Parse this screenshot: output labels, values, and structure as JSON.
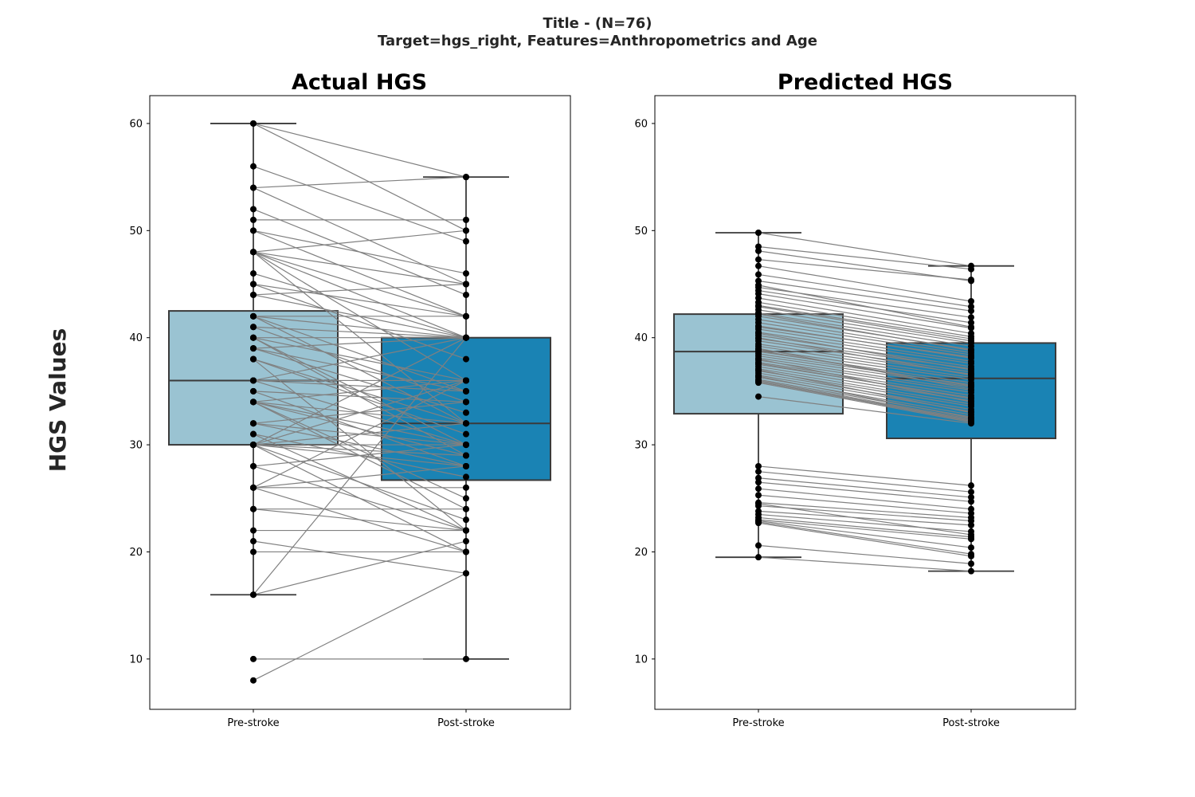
{
  "figure": {
    "suptitle_line1": "Title -  (N=76)",
    "suptitle_line2": "Target=hgs_right, Features=Anthropometrics and Age",
    "ylabel": "HGS Values"
  },
  "colors": {
    "pre_box": "#9ac3d2",
    "post_box": "#1a83b4",
    "paired_line": "#808080",
    "points": "#000000",
    "box_edge": "#3a3a3a"
  },
  "chart_data": [
    {
      "type": "box",
      "title": "Actual HGS",
      "categories": [
        "Pre-stroke",
        "Post-stroke"
      ],
      "ylim": [
        5.3,
        62.6
      ],
      "yticks": [
        10,
        20,
        30,
        40,
        50,
        60
      ],
      "grid": false,
      "boxes": [
        {
          "name": "Pre-stroke",
          "q1": 30,
          "median": 36,
          "q3": 42.5,
          "whisker_low": 16,
          "whisker_high": 60
        },
        {
          "name": "Post-stroke",
          "q1": 26.7,
          "median": 32,
          "q3": 40,
          "whisker_low": 10,
          "whisker_high": 55
        }
      ],
      "pairs": [
        [
          60,
          55
        ],
        [
          60,
          50
        ],
        [
          56,
          49
        ],
        [
          54,
          55
        ],
        [
          54,
          45
        ],
        [
          52,
          44
        ],
        [
          51,
          51
        ],
        [
          50,
          46
        ],
        [
          50,
          42
        ],
        [
          48,
          50
        ],
        [
          48,
          45
        ],
        [
          48,
          42
        ],
        [
          48,
          40
        ],
        [
          48,
          36
        ],
        [
          48,
          32
        ],
        [
          46,
          40
        ],
        [
          45,
          42
        ],
        [
          45,
          38
        ],
        [
          44,
          45
        ],
        [
          44,
          40
        ],
        [
          42,
          42
        ],
        [
          42,
          40
        ],
        [
          42,
          35
        ],
        [
          42,
          32
        ],
        [
          41,
          40
        ],
        [
          41,
          34
        ],
        [
          40,
          40
        ],
        [
          40,
          36
        ],
        [
          40,
          30
        ],
        [
          40,
          29
        ],
        [
          39,
          40
        ],
        [
          39,
          33
        ],
        [
          39,
          35
        ],
        [
          38,
          32
        ],
        [
          38,
          31
        ],
        [
          38,
          22
        ],
        [
          36,
          40
        ],
        [
          36,
          36
        ],
        [
          36,
          35
        ],
        [
          36,
          30
        ],
        [
          35,
          34
        ],
        [
          35,
          28
        ],
        [
          34,
          36
        ],
        [
          34,
          32
        ],
        [
          34,
          30
        ],
        [
          34,
          29
        ],
        [
          34,
          25
        ],
        [
          34,
          24
        ],
        [
          32,
          34
        ],
        [
          32,
          30
        ],
        [
          32,
          28
        ],
        [
          31,
          27
        ],
        [
          31,
          22
        ],
        [
          30,
          40
        ],
        [
          30,
          36
        ],
        [
          30,
          32
        ],
        [
          30,
          30
        ],
        [
          30,
          29
        ],
        [
          30,
          28
        ],
        [
          30,
          23
        ],
        [
          30,
          20
        ],
        [
          28,
          22
        ],
        [
          28,
          30
        ],
        [
          26,
          36
        ],
        [
          26,
          28
        ],
        [
          26,
          26
        ],
        [
          26,
          20
        ],
        [
          24,
          24
        ],
        [
          24,
          22
        ],
        [
          22,
          22
        ],
        [
          21,
          18
        ],
        [
          20,
          20
        ],
        [
          16,
          40
        ],
        [
          16,
          21
        ],
        [
          10,
          10
        ],
        [
          8,
          18
        ]
      ]
    },
    {
      "type": "box",
      "title": "Predicted HGS",
      "categories": [
        "Pre-stroke",
        "Post-stroke"
      ],
      "ylim": [
        5.3,
        62.6
      ],
      "yticks": [
        10,
        20,
        30,
        40,
        50,
        60
      ],
      "grid": false,
      "boxes": [
        {
          "name": "Pre-stroke",
          "q1": 32.9,
          "median": 38.7,
          "q3": 42.2,
          "whisker_low": 19.5,
          "whisker_high": 49.8
        },
        {
          "name": "Post-stroke",
          "q1": 30.6,
          "median": 36.2,
          "q3": 39.5,
          "whisker_low": 18.2,
          "whisker_high": 46.7
        }
      ],
      "pairs": [
        [
          49.8,
          46.7
        ],
        [
          48.5,
          46.4
        ],
        [
          48.1,
          45.3
        ],
        [
          47.3,
          45.4
        ],
        [
          46.7,
          43.4
        ],
        [
          45.9,
          42.9
        ],
        [
          45.3,
          42.5
        ],
        [
          44.7,
          41.9
        ],
        [
          44.4,
          41.4
        ],
        [
          44.1,
          40.9
        ],
        [
          43.7,
          40.4
        ],
        [
          43.3,
          40.1
        ],
        [
          42.9,
          39.7
        ],
        [
          42.6,
          39.5
        ],
        [
          42.3,
          39.2
        ],
        [
          42.0,
          38.9
        ],
        [
          41.7,
          38.6
        ],
        [
          41.4,
          38.4
        ],
        [
          41.1,
          38.1
        ],
        [
          40.8,
          37.8
        ],
        [
          40.5,
          37.6
        ],
        [
          40.2,
          37.3
        ],
        [
          39.9,
          37.1
        ],
        [
          39.7,
          36.8
        ],
        [
          39.4,
          36.6
        ],
        [
          39.2,
          36.3
        ],
        [
          38.9,
          36.1
        ],
        [
          38.7,
          35.8
        ],
        [
          38.5,
          35.6
        ],
        [
          38.3,
          35.4
        ],
        [
          38.1,
          35.1
        ],
        [
          37.9,
          34.9
        ],
        [
          37.7,
          34.6
        ],
        [
          37.5,
          34.4
        ],
        [
          37.3,
          34.1
        ],
        [
          37.1,
          33.8
        ],
        [
          36.9,
          33.6
        ],
        [
          36.7,
          33.3
        ],
        [
          36.5,
          33.1
        ],
        [
          36.3,
          32.8
        ],
        [
          36.1,
          32.6
        ],
        [
          36.0,
          32.4
        ],
        [
          35.9,
          32.2
        ],
        [
          35.8,
          32.1
        ],
        [
          34.5,
          32.0
        ],
        [
          44.9,
          41.0
        ],
        [
          43.0,
          39.9
        ],
        [
          41.0,
          38.2
        ],
        [
          40.0,
          36.5
        ],
        [
          39.0,
          35.2
        ],
        [
          38.0,
          34.0
        ],
        [
          37.0,
          33.0
        ],
        [
          36.4,
          32.5
        ],
        [
          35.9,
          32.3
        ],
        [
          42.2,
          38.8
        ],
        [
          40.4,
          37.0
        ],
        [
          38.8,
          35.5
        ],
        [
          37.6,
          34.3
        ],
        [
          28.0,
          26.2
        ],
        [
          27.5,
          25.6
        ],
        [
          26.9,
          25.1
        ],
        [
          26.5,
          24.7
        ],
        [
          25.9,
          24.0
        ],
        [
          25.3,
          23.6
        ],
        [
          24.6,
          23.2
        ],
        [
          24.3,
          22.9
        ],
        [
          23.8,
          22.5
        ],
        [
          23.5,
          21.9
        ],
        [
          23.2,
          21.4
        ],
        [
          23.0,
          21.2
        ],
        [
          22.9,
          20.4
        ],
        [
          22.8,
          19.8
        ],
        [
          22.7,
          19.6
        ],
        [
          20.6,
          18.9
        ],
        [
          19.5,
          18.2
        ],
        [
          24.5,
          21.6
        ]
      ]
    }
  ]
}
